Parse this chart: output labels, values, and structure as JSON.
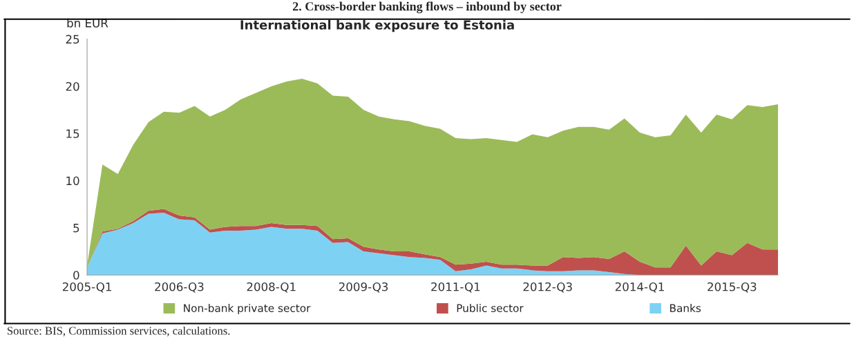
{
  "chart_data": {
    "type": "area",
    "stacked": true,
    "title": "2. Cross-border banking flows – inbound by sector",
    "subtitle": "International bank exposure to Estonia",
    "ylabel": "bn EUR",
    "annotations": [
      "Source: BIS, Commission services, calculations."
    ],
    "categories": [
      "2005-Q1",
      null,
      null,
      null,
      null,
      null,
      "2006-Q3",
      null,
      null,
      null,
      null,
      null,
      "2008-Q1",
      null,
      null,
      null,
      null,
      null,
      "2009-Q3",
      null,
      null,
      null,
      null,
      null,
      "2011-Q1",
      null,
      null,
      null,
      null,
      null,
      "2012-Q3",
      null,
      null,
      null,
      null,
      null,
      "2014-Q1",
      null,
      null,
      null,
      null,
      null,
      "2015-Q3",
      null,
      null,
      null
    ],
    "ylim": [
      0,
      25
    ],
    "yticks": [
      0,
      5,
      10,
      15,
      20,
      25
    ],
    "grid": false,
    "legend": "bottom",
    "series": [
      {
        "name": "Banks",
        "color": "#7dd2f4",
        "values": [
          0.8,
          4.4,
          4.8,
          5.5,
          6.5,
          6.6,
          5.9,
          5.8,
          4.5,
          4.7,
          4.7,
          4.8,
          5.1,
          4.9,
          4.9,
          4.7,
          3.4,
          3.5,
          2.5,
          2.3,
          2.1,
          1.9,
          1.8,
          1.6,
          0.4,
          0.6,
          1.0,
          0.7,
          0.7,
          0.5,
          0.4,
          0.4,
          0.5,
          0.5,
          0.3,
          0.1,
          0,
          0,
          0,
          0,
          0,
          0,
          0,
          0,
          0,
          0
        ]
      },
      {
        "name": "Public sector",
        "color": "#c0504d",
        "values": [
          0,
          0.2,
          0.1,
          0.2,
          0.3,
          0.4,
          0.4,
          0.3,
          0.3,
          0.4,
          0.5,
          0.4,
          0.4,
          0.4,
          0.4,
          0.5,
          0.4,
          0.4,
          0.5,
          0.4,
          0.4,
          0.6,
          0.4,
          0.3,
          0.7,
          0.6,
          0.4,
          0.4,
          0.4,
          0.5,
          0.6,
          1.5,
          1.3,
          1.4,
          1.4,
          2.4,
          1.4,
          0.8,
          0.8,
          3.1,
          1.0,
          2.5,
          2.1,
          3.4,
          2.7,
          2.7
        ]
      },
      {
        "name": "Non-bank private sector",
        "color": "#9bbb59",
        "values": [
          0.2,
          7.1,
          5.8,
          8.1,
          9.4,
          10.3,
          10.9,
          11.8,
          12.0,
          12.4,
          13.4,
          14.1,
          14.5,
          15.2,
          15.5,
          15.1,
          15.2,
          15.0,
          14.5,
          14.1,
          14.0,
          13.8,
          13.6,
          13.6,
          13.4,
          13.2,
          13.1,
          13.2,
          13.0,
          13.9,
          13.6,
          13.4,
          13.9,
          13.8,
          13.7,
          14.1,
          13.7,
          13.8,
          14.0,
          13.9,
          14.1,
          14.5,
          14.4,
          14.6,
          15.1,
          15.4
        ]
      }
    ]
  }
}
